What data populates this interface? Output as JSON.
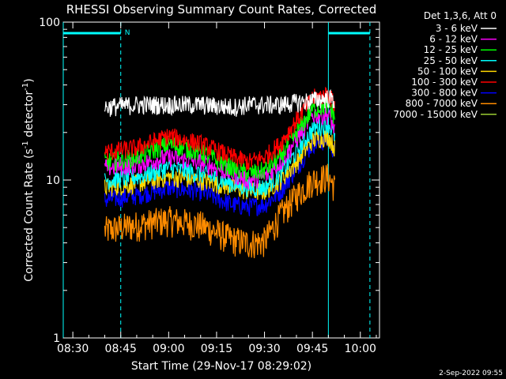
{
  "chart_data": {
    "type": "line",
    "title": "RHESSI Observing Summary Count Rates, Corrected",
    "xlabel": "Start Time (29-Nov-17 08:29:02)",
    "ylabel": "Corrected Count Rate (s⁻¹ detector⁻¹)",
    "ylabel_main": "Corrected Count Rate (s",
    "ylabel_mid": " detector",
    "ylabel_end": ")",
    "ylabel_sup": "-1",
    "yscale": "log",
    "ylim": [
      1,
      100
    ],
    "xlim": [
      "08:27",
      "10:06"
    ],
    "x_ticks": [
      "08:30",
      "08:45",
      "09:00",
      "09:15",
      "09:30",
      "09:45",
      "10:00"
    ],
    "y_ticks": [
      "1",
      "10",
      "100"
    ],
    "legend_title": "Det 1,3,6, Att 0",
    "legend_position": "right",
    "timestamp": "2-Sep-2022 09:55",
    "night_label": "N",
    "data_start": "08:40",
    "data_end": "09:52",
    "series": [
      {
        "name": "3 - 6 keV",
        "color": "#ffffff",
        "x": [
          "08:40",
          "08:50",
          "09:00",
          "09:10",
          "09:20",
          "09:25",
          "09:30",
          "09:35",
          "09:40",
          "09:45",
          "09:50",
          "09:52"
        ],
        "y": [
          29,
          30,
          30,
          30,
          29,
          30,
          30,
          30,
          31,
          32,
          33,
          32
        ]
      },
      {
        "name": "6 - 12 keV",
        "color": "#ff00ff",
        "x": [
          "08:40",
          "08:50",
          "09:00",
          "09:10",
          "09:20",
          "09:25",
          "09:30",
          "09:35",
          "09:40",
          "09:45",
          "09:50",
          "09:52"
        ],
        "y": [
          12,
          12.5,
          14,
          13,
          11,
          10,
          10.5,
          13,
          18,
          26,
          26,
          21
        ]
      },
      {
        "name": "12 - 25 keV",
        "color": "#00ff00",
        "x": [
          "08:40",
          "08:50",
          "09:00",
          "09:10",
          "09:20",
          "09:25",
          "09:30",
          "09:35",
          "09:40",
          "09:45",
          "09:50",
          "09:52"
        ],
        "y": [
          13,
          14,
          17,
          15,
          12,
          11,
          11.5,
          14,
          20,
          28,
          30,
          25
        ]
      },
      {
        "name": "25 - 50 keV",
        "color": "#00ffff",
        "x": [
          "08:40",
          "08:50",
          "09:00",
          "09:10",
          "09:20",
          "09:25",
          "09:30",
          "09:35",
          "09:40",
          "09:45",
          "09:50",
          "09:52"
        ],
        "y": [
          10,
          10.5,
          12,
          11,
          9.5,
          9,
          9,
          11,
          15,
          21,
          23,
          19
        ]
      },
      {
        "name": "50 - 100 keV",
        "color": "#ffd700",
        "x": [
          "08:40",
          "08:50",
          "09:00",
          "09:10",
          "09:20",
          "09:25",
          "09:30",
          "09:35",
          "09:40",
          "09:45",
          "09:50",
          "09:52"
        ],
        "y": [
          9,
          9.5,
          10.5,
          10,
          9,
          8.5,
          8.5,
          10,
          13,
          18,
          19,
          16
        ]
      },
      {
        "name": "100 - 300 keV",
        "color": "#ff0000",
        "x": [
          "08:40",
          "08:50",
          "09:00",
          "09:10",
          "09:20",
          "09:25",
          "09:30",
          "09:35",
          "09:40",
          "09:45",
          "09:50",
          "09:52"
        ],
        "y": [
          15,
          16,
          19,
          17,
          14,
          13,
          14,
          17,
          24,
          33,
          35,
          30
        ]
      },
      {
        "name": "300 - 800 keV",
        "color": "#0000ff",
        "x": [
          "08:40",
          "08:50",
          "09:00",
          "09:10",
          "09:20",
          "09:25",
          "09:30",
          "09:35",
          "09:40",
          "09:45",
          "09:50",
          "09:52"
        ],
        "y": [
          7.5,
          8,
          9,
          8.5,
          7,
          6.8,
          7,
          8.5,
          12,
          17,
          18,
          15
        ]
      },
      {
        "name": "800 - 7000 keV",
        "color": "#ff8c00",
        "x": [
          "08:40",
          "08:50",
          "09:00",
          "09:10",
          "09:20",
          "09:25",
          "09:30",
          "09:35",
          "09:40",
          "09:45",
          "09:50",
          "09:52"
        ],
        "y": [
          4.8,
          5.2,
          5.6,
          5.2,
          4.2,
          4,
          4.1,
          6,
          8,
          10,
          10.5,
          9
        ]
      },
      {
        "name": "7000 - 15000 keV",
        "color": "#9acd32",
        "x": [],
        "y": []
      }
    ],
    "bar_attenuator": [
      [
        "08:27",
        "08:45"
      ],
      [
        "09:50",
        "10:03"
      ]
    ]
  }
}
